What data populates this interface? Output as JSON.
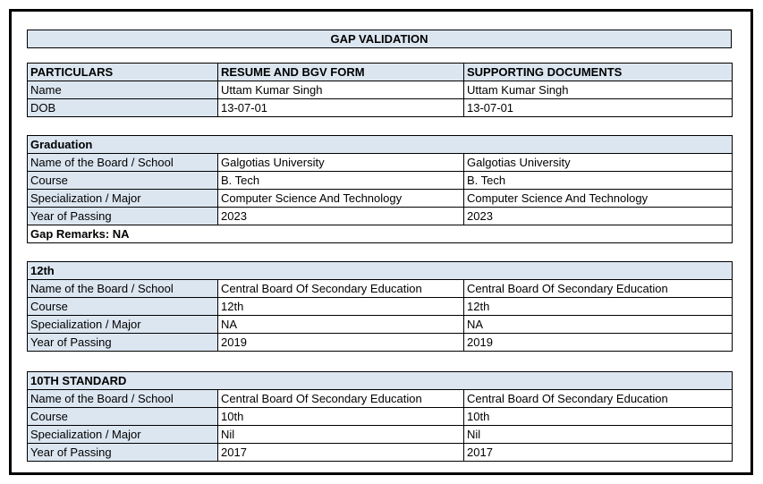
{
  "title": "GAP VALIDATION",
  "colors": {
    "header_bg": "#dce6f1",
    "border": "#000000",
    "text": "#000000",
    "page_bg": "#ffffff"
  },
  "particulars_table": {
    "headers": [
      "PARTICULARS",
      "RESUME AND BGV FORM",
      "SUPPORTING DOCUMENTS"
    ],
    "rows": [
      [
        "Name",
        "Uttam Kumar Singh",
        "Uttam Kumar Singh"
      ],
      [
        "DOB",
        "13-07-01",
        "13-07-01"
      ]
    ]
  },
  "sections": [
    {
      "title": "Graduation",
      "rows": [
        [
          "Name of the Board / School",
          "Galgotias University",
          "Galgotias University"
        ],
        [
          "Course",
          "B. Tech",
          "B. Tech"
        ],
        [
          "Specialization / Major",
          "Computer Science And Technology",
          "Computer Science And Technology"
        ],
        [
          "Year of Passing",
          "2023",
          "2023"
        ]
      ],
      "remarks": "Gap Remarks: NA"
    },
    {
      "title": "12th",
      "rows": [
        [
          "Name of the Board / School",
          "Central Board Of Secondary Education",
          "Central Board Of Secondary Education"
        ],
        [
          "Course",
          "12th",
          "12th"
        ],
        [
          "Specialization / Major",
          "NA",
          "NA"
        ],
        [
          "Year of Passing",
          "2019",
          "2019"
        ]
      ]
    },
    {
      "title": "10TH STANDARD",
      "rows": [
        [
          "Name of the Board / School",
          "Central Board Of Secondary Education",
          "Central Board Of Secondary Education"
        ],
        [
          "Course",
          "10th",
          "10th"
        ],
        [
          "Specialization / Major",
          "Nil",
          "Nil"
        ],
        [
          "Year of Passing",
          "2017",
          "2017"
        ]
      ]
    }
  ]
}
